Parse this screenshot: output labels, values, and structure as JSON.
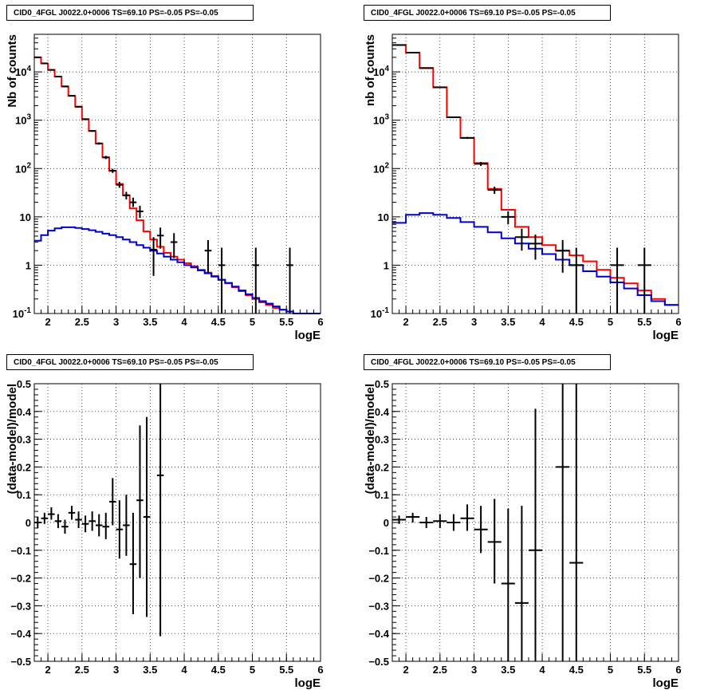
{
  "chart_data": [
    {
      "type": "histogram",
      "title": "CID0_4FGL J0022.0+0006 TS=69.10 PS=-0.05 PS=-0.05",
      "xlabel": "logE",
      "ylabel": "Nb of counts",
      "xlim": [
        1.8,
        6.0
      ],
      "ylim": [
        0.1,
        60000
      ],
      "log_y": true,
      "grid": true,
      "xticks": [
        "2",
        "2.5",
        "3",
        "3.5",
        "4",
        "4.5",
        "5",
        "5.5",
        "6"
      ],
      "yticks": [
        "10^-1",
        "1",
        "10",
        "10^2",
        "10^3",
        "10^4"
      ],
      "bin_edges": [
        1.8,
        1.9,
        2.0,
        2.1,
        2.2,
        2.3,
        2.4,
        2.5,
        2.6,
        2.7,
        2.8,
        2.9,
        3.0,
        3.1,
        3.2,
        3.3,
        3.4,
        3.5,
        3.6,
        3.7,
        3.8,
        3.9,
        4.0,
        4.1,
        4.2,
        4.3,
        4.4,
        4.5,
        4.6,
        4.7,
        4.8,
        4.9,
        5.0,
        5.1,
        5.2,
        5.3,
        5.4,
        5.5,
        5.6,
        5.7,
        5.8,
        5.9,
        6.0
      ],
      "series": [
        {
          "name": "",
          "color": "#ff0000",
          "style": "step",
          "values": [
            20000,
            15000,
            11000,
            8000,
            5000,
            3200,
            1900,
            1050,
            600,
            330,
            170,
            90,
            48,
            28,
            15,
            8.5,
            5.0,
            3.4,
            2.4,
            1.8,
            1.5,
            1.3,
            1.1,
            0.95,
            0.8,
            0.7,
            0.6,
            0.5,
            0.42,
            0.35,
            0.29,
            0.24,
            0.2,
            0.17,
            0.15,
            0.13,
            0.12,
            0.11,
            0.1,
            0.1,
            0.1,
            0.1
          ]
        },
        {
          "name": "",
          "color": "#0000cc",
          "style": "step",
          "values": [
            3.2,
            4.2,
            5.2,
            5.8,
            6.1,
            6.1,
            5.9,
            5.6,
            5.3,
            4.9,
            4.5,
            4.2,
            3.8,
            3.4,
            3.0,
            2.6,
            2.3,
            2.0,
            1.75,
            1.5,
            1.3,
            1.15,
            1.0,
            0.9,
            0.78,
            0.68,
            0.58,
            0.5,
            0.43,
            0.36,
            0.3,
            0.25,
            0.21,
            0.18,
            0.16,
            0.14,
            0.12,
            0.11,
            0.1,
            0.1,
            0.1,
            0.1
          ]
        },
        {
          "name": "",
          "color": "#000000",
          "style": "errorbar",
          "points": [
            {
              "x": 1.85,
              "xerr": 0.05,
              "y": 20000,
              "ylo": 19500,
              "yhi": 20500
            },
            {
              "x": 1.95,
              "xerr": 0.05,
              "y": 15000,
              "ylo": 14600,
              "yhi": 15400
            },
            {
              "x": 2.05,
              "xerr": 0.05,
              "y": 11000,
              "ylo": 10700,
              "yhi": 11300
            },
            {
              "x": 2.15,
              "xerr": 0.05,
              "y": 8000,
              "ylo": 7800,
              "yhi": 8200
            },
            {
              "x": 2.25,
              "xerr": 0.05,
              "y": 5000,
              "ylo": 4850,
              "yhi": 5150
            },
            {
              "x": 2.35,
              "xerr": 0.05,
              "y": 3200,
              "ylo": 3100,
              "yhi": 3300
            },
            {
              "x": 2.45,
              "xerr": 0.05,
              "y": 1900,
              "ylo": 1840,
              "yhi": 1960
            },
            {
              "x": 2.55,
              "xerr": 0.05,
              "y": 1050,
              "ylo": 1010,
              "yhi": 1090
            },
            {
              "x": 2.65,
              "xerr": 0.05,
              "y": 600,
              "ylo": 575,
              "yhi": 625
            },
            {
              "x": 2.75,
              "xerr": 0.05,
              "y": 330,
              "ylo": 312,
              "yhi": 348
            },
            {
              "x": 2.85,
              "xerr": 0.05,
              "y": 170,
              "ylo": 157,
              "yhi": 183
            },
            {
              "x": 2.95,
              "xerr": 0.05,
              "y": 90,
              "ylo": 81,
              "yhi": 99
            },
            {
              "x": 3.05,
              "xerr": 0.05,
              "y": 46,
              "ylo": 40,
              "yhi": 53
            },
            {
              "x": 3.15,
              "xerr": 0.05,
              "y": 28,
              "ylo": 23,
              "yhi": 33
            },
            {
              "x": 3.25,
              "xerr": 0.05,
              "y": 20,
              "ylo": 16,
              "yhi": 25
            },
            {
              "x": 3.35,
              "xerr": 0.05,
              "y": 13,
              "ylo": 9.5,
              "yhi": 17
            },
            {
              "x": 3.55,
              "xerr": 0.05,
              "y": 2.1,
              "ylo": 0.6,
              "yhi": 3.8
            },
            {
              "x": 3.65,
              "xerr": 0.05,
              "y": 4.1,
              "ylo": 2.2,
              "yhi": 6.0
            },
            {
              "x": 3.85,
              "xerr": 0.05,
              "y": 3.0,
              "ylo": 1.4,
              "yhi": 4.6
            },
            {
              "x": 4.35,
              "xerr": 0.05,
              "y": 2.0,
              "ylo": 0.7,
              "yhi": 3.3
            },
            {
              "x": 4.55,
              "xerr": 0.05,
              "y": 1.0,
              "ylo": 0.1,
              "yhi": 2.3
            },
            {
              "x": 5.05,
              "xerr": 0.05,
              "y": 1.0,
              "ylo": 0.1,
              "yhi": 2.3
            },
            {
              "x": 5.55,
              "xerr": 0.05,
              "y": 1.0,
              "ylo": 0.1,
              "yhi": 2.3
            }
          ]
        }
      ]
    },
    {
      "type": "histogram",
      "title": "CID0_4FGL J0022.0+0006 TS=69.10 PS=-0.05 PS=-0.05",
      "xlabel": "logE",
      "ylabel": "nb of counts",
      "xlim": [
        1.8,
        6.0
      ],
      "ylim": [
        0.1,
        60000
      ],
      "log_y": true,
      "grid": true,
      "xticks": [
        "2",
        "2.5",
        "3",
        "3.5",
        "4",
        "4.5",
        "5",
        "5.5",
        "6"
      ],
      "yticks": [
        "10^-1",
        "1",
        "10",
        "10^2",
        "10^3",
        "10^4"
      ],
      "bin_edges": [
        1.8,
        2.0,
        2.2,
        2.4,
        2.6,
        2.8,
        3.0,
        3.2,
        3.4,
        3.6,
        3.8,
        4.0,
        4.2,
        4.4,
        4.6,
        4.8,
        5.0,
        5.2,
        5.4,
        5.6,
        5.8,
        6.0
      ],
      "series": [
        {
          "name": "",
          "color": "#ff0000",
          "style": "step",
          "values": [
            36000,
            25000,
            12000,
            4800,
            1150,
            430,
            130,
            38,
            14,
            6.2,
            3.8,
            2.6,
            2.0,
            1.6,
            1.2,
            0.8,
            0.55,
            0.42,
            0.3,
            0.2,
            0.15
          ]
        },
        {
          "name": "",
          "color": "#0000cc",
          "style": "step",
          "values": [
            7.5,
            11,
            12,
            11,
            9.5,
            7.8,
            6.2,
            4.8,
            3.6,
            2.8,
            2.2,
            1.7,
            1.3,
            1.0,
            0.75,
            0.58,
            0.44,
            0.33,
            0.24,
            0.18,
            0.15
          ]
        },
        {
          "name": "",
          "color": "#000000",
          "style": "errorbar",
          "points": [
            {
              "x": 1.9,
              "xerr": 0.1,
              "y": 36000,
              "ylo": 35500,
              "yhi": 36500
            },
            {
              "x": 2.1,
              "xerr": 0.1,
              "y": 25000,
              "ylo": 24600,
              "yhi": 25400
            },
            {
              "x": 2.3,
              "xerr": 0.1,
              "y": 12000,
              "ylo": 11800,
              "yhi": 12200
            },
            {
              "x": 2.5,
              "xerr": 0.1,
              "y": 4800,
              "ylo": 4700,
              "yhi": 4900
            },
            {
              "x": 2.7,
              "xerr": 0.1,
              "y": 1150,
              "ylo": 1110,
              "yhi": 1190
            },
            {
              "x": 2.9,
              "xerr": 0.1,
              "y": 430,
              "ylo": 410,
              "yhi": 450
            },
            {
              "x": 3.1,
              "xerr": 0.1,
              "y": 125,
              "ylo": 113,
              "yhi": 137
            },
            {
              "x": 3.3,
              "xerr": 0.1,
              "y": 36,
              "ylo": 30,
              "yhi": 42
            },
            {
              "x": 3.5,
              "xerr": 0.1,
              "y": 10,
              "ylo": 7,
              "yhi": 13
            },
            {
              "x": 3.7,
              "xerr": 0.1,
              "y": 3.8,
              "ylo": 2.0,
              "yhi": 5.7
            },
            {
              "x": 3.9,
              "xerr": 0.1,
              "y": 2.8,
              "ylo": 1.3,
              "yhi": 4.3
            },
            {
              "x": 4.3,
              "xerr": 0.1,
              "y": 2.0,
              "ylo": 0.7,
              "yhi": 3.3
            },
            {
              "x": 4.5,
              "xerr": 0.1,
              "y": 1.0,
              "ylo": 0.1,
              "yhi": 2.3
            },
            {
              "x": 5.1,
              "xerr": 0.1,
              "y": 1.0,
              "ylo": 0.1,
              "yhi": 2.3
            },
            {
              "x": 5.5,
              "xerr": 0.1,
              "y": 1.0,
              "ylo": 0.1,
              "yhi": 2.3
            }
          ]
        }
      ]
    },
    {
      "type": "scatter",
      "title": "CID0_4FGL J0022.0+0006 TS=69.10 PS=-0.05 PS=-0.05",
      "xlabel": "logE",
      "ylabel": "(data-model)/model",
      "xlim": [
        1.8,
        6.0
      ],
      "ylim": [
        -0.5,
        0.5
      ],
      "grid": true,
      "xticks": [
        "2",
        "2.5",
        "3",
        "3.5",
        "4",
        "4.5",
        "5",
        "5.5",
        "6"
      ],
      "yticks": [
        "-0.5",
        "-0.4",
        "-0.3",
        "-0.2",
        "-0.1",
        "0",
        "0.1",
        "0.2",
        "0.3",
        "0.4",
        "0.5"
      ],
      "series": [
        {
          "name": "",
          "color": "#000000",
          "style": "errorbar",
          "points": [
            {
              "x": 1.85,
              "xerr": 0.05,
              "y": 0.0,
              "ylo": -0.02,
              "yhi": 0.02
            },
            {
              "x": 1.95,
              "xerr": 0.05,
              "y": 0.015,
              "ylo": -0.005,
              "yhi": 0.035
            },
            {
              "x": 2.05,
              "xerr": 0.05,
              "y": 0.03,
              "ylo": 0.01,
              "yhi": 0.055
            },
            {
              "x": 2.15,
              "xerr": 0.05,
              "y": 0.005,
              "ylo": -0.02,
              "yhi": 0.03
            },
            {
              "x": 2.25,
              "xerr": 0.05,
              "y": -0.015,
              "ylo": -0.04,
              "yhi": 0.01
            },
            {
              "x": 2.35,
              "xerr": 0.05,
              "y": 0.035,
              "ylo": 0.01,
              "yhi": 0.06
            },
            {
              "x": 2.45,
              "xerr": 0.05,
              "y": 0.01,
              "ylo": -0.02,
              "yhi": 0.04
            },
            {
              "x": 2.55,
              "xerr": 0.05,
              "y": -0.005,
              "ylo": -0.035,
              "yhi": 0.025
            },
            {
              "x": 2.65,
              "xerr": 0.05,
              "y": 0.005,
              "ylo": -0.03,
              "yhi": 0.04
            },
            {
              "x": 2.75,
              "xerr": 0.05,
              "y": -0.01,
              "ylo": -0.05,
              "yhi": 0.03
            },
            {
              "x": 2.85,
              "xerr": 0.05,
              "y": -0.015,
              "ylo": -0.06,
              "yhi": 0.035
            },
            {
              "x": 2.95,
              "xerr": 0.05,
              "y": 0.075,
              "ylo": -0.01,
              "yhi": 0.16
            },
            {
              "x": 3.05,
              "xerr": 0.05,
              "y": -0.025,
              "ylo": -0.13,
              "yhi": 0.08
            },
            {
              "x": 3.15,
              "xerr": 0.05,
              "y": -0.01,
              "ylo": -0.12,
              "yhi": 0.1
            },
            {
              "x": 3.25,
              "xerr": 0.05,
              "y": -0.15,
              "ylo": -0.33,
              "yhi": 0.035
            },
            {
              "x": 3.35,
              "xerr": 0.05,
              "y": 0.08,
              "ylo": -0.2,
              "yhi": 0.35
            },
            {
              "x": 3.45,
              "xerr": 0.05,
              "y": 0.02,
              "ylo": -0.34,
              "yhi": 0.38
            },
            {
              "x": 3.65,
              "xerr": 0.05,
              "y": 0.17,
              "ylo": -0.41,
              "yhi": 0.75
            }
          ]
        }
      ]
    },
    {
      "type": "scatter",
      "title": "CID0_4FGL J0022.0+0006 TS=69.10 PS=-0.05 PS=-0.05",
      "xlabel": "logE",
      "ylabel": "(data-model)/model",
      "xlim": [
        1.8,
        6.0
      ],
      "ylim": [
        -0.5,
        0.5
      ],
      "grid": true,
      "xticks": [
        "2",
        "2.5",
        "3",
        "3.5",
        "4",
        "4.5",
        "5",
        "5.5",
        "6"
      ],
      "yticks": [
        "-0.5",
        "-0.4",
        "-0.3",
        "-0.2",
        "-0.1",
        "0",
        "0.1",
        "0.2",
        "0.3",
        "0.4",
        "0.5"
      ],
      "series": [
        {
          "name": "",
          "color": "#000000",
          "style": "errorbar",
          "points": [
            {
              "x": 1.9,
              "xerr": 0.1,
              "y": 0.01,
              "ylo": -0.005,
              "yhi": 0.025
            },
            {
              "x": 2.1,
              "xerr": 0.1,
              "y": 0.02,
              "ylo": 0.0,
              "yhi": 0.035
            },
            {
              "x": 2.3,
              "xerr": 0.1,
              "y": 0.0,
              "ylo": -0.02,
              "yhi": 0.02
            },
            {
              "x": 2.5,
              "xerr": 0.1,
              "y": 0.005,
              "ylo": -0.02,
              "yhi": 0.03
            },
            {
              "x": 2.7,
              "xerr": 0.1,
              "y": 0.0,
              "ylo": -0.03,
              "yhi": 0.03
            },
            {
              "x": 2.9,
              "xerr": 0.1,
              "y": 0.015,
              "ylo": -0.03,
              "yhi": 0.065
            },
            {
              "x": 3.1,
              "xerr": 0.1,
              "y": -0.025,
              "ylo": -0.11,
              "yhi": 0.06
            },
            {
              "x": 3.3,
              "xerr": 0.1,
              "y": -0.07,
              "ylo": -0.22,
              "yhi": 0.085
            },
            {
              "x": 3.5,
              "xerr": 0.1,
              "y": -0.22,
              "ylo": -0.5,
              "yhi": 0.05
            },
            {
              "x": 3.7,
              "xerr": 0.1,
              "y": -0.29,
              "ylo": -0.5,
              "yhi": 0.06
            },
            {
              "x": 3.9,
              "xerr": 0.1,
              "y": -0.1,
              "ylo": -0.5,
              "yhi": 0.41
            },
            {
              "x": 4.3,
              "xerr": 0.1,
              "y": 0.2,
              "ylo": -0.5,
              "yhi": 0.5
            },
            {
              "x": 4.5,
              "xerr": 0.1,
              "y": -0.145,
              "ylo": -0.5,
              "yhi": 0.5
            }
          ]
        }
      ]
    }
  ]
}
